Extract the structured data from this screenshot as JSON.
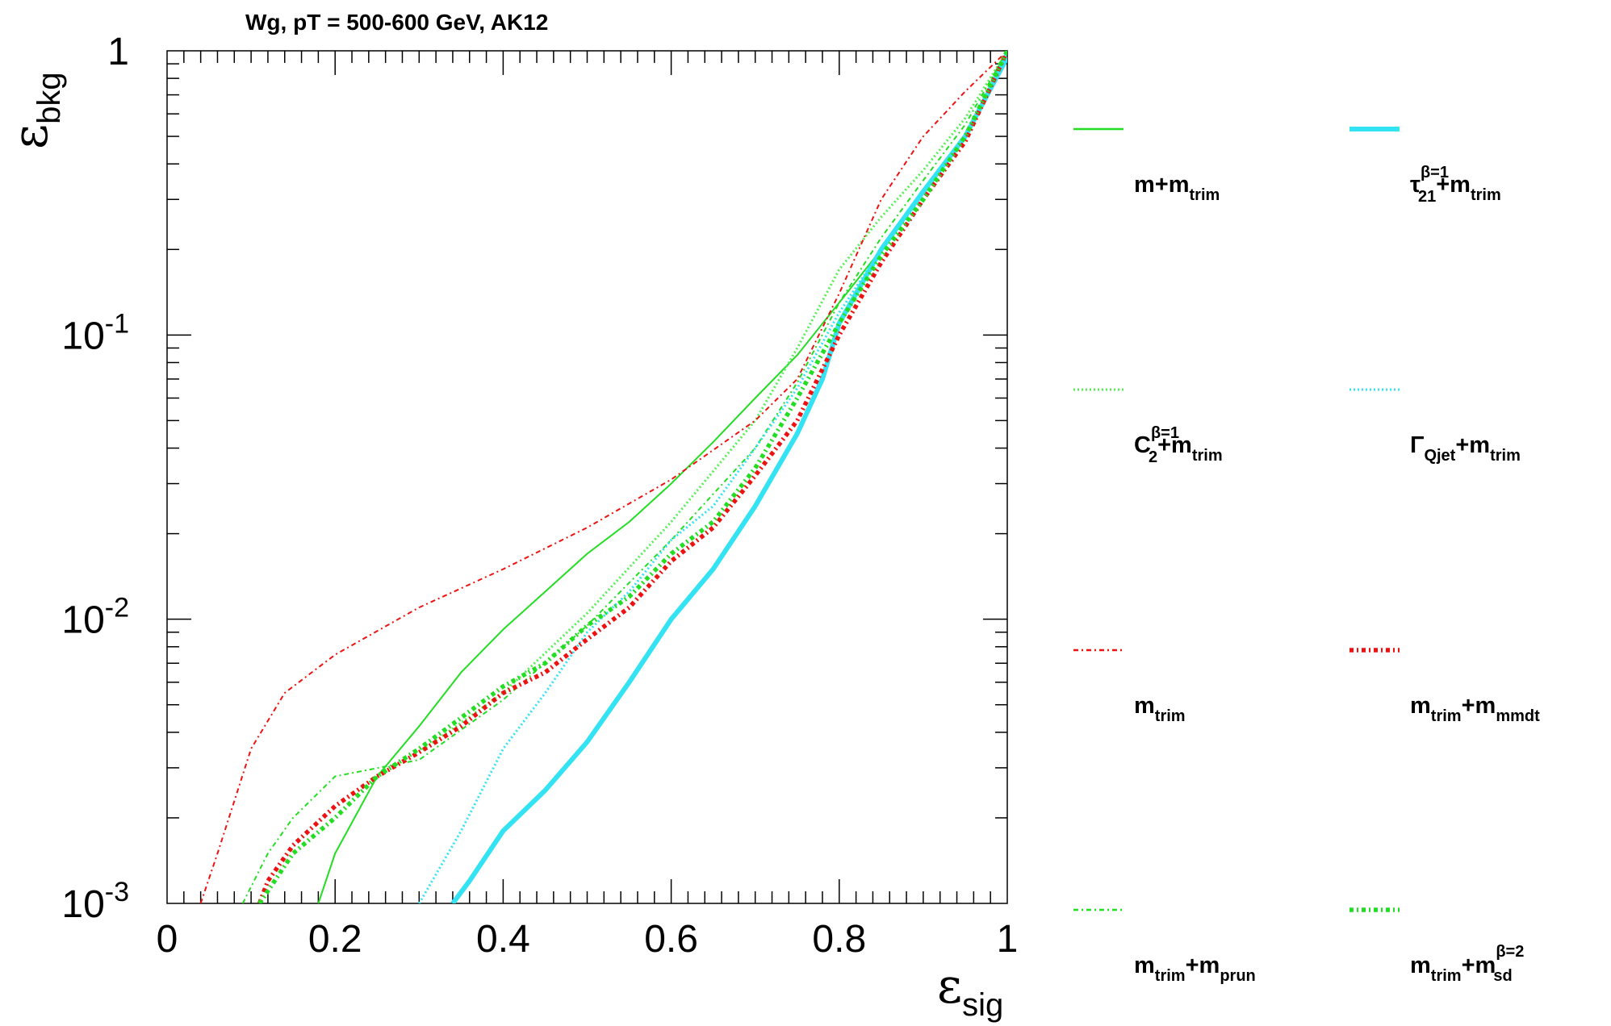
{
  "chart_data": {
    "type": "line",
    "title": "Wg, pT = 500-600 GeV, AK12",
    "xlabel": {
      "main": "ε",
      "sub": "sig"
    },
    "ylabel": {
      "main": "ε",
      "sub": "bkg"
    },
    "xlim": [
      0,
      1
    ],
    "ylim": [
      0.001,
      1
    ],
    "yscale": "log",
    "grid": false,
    "legend_placement": "right",
    "x_ticks": [
      "0",
      "0.2",
      "0.4",
      "0.6",
      "0.8",
      "1"
    ],
    "y_ticks": [
      {
        "base": "10",
        "exp": "-3"
      },
      {
        "base": "10",
        "exp": "-2"
      },
      {
        "base": "10",
        "exp": "-1"
      },
      {
        "base": "1",
        "exp": ""
      }
    ],
    "series": [
      {
        "name": "m+m_trim",
        "label": {
          "main": "m+m",
          "sub": "trim",
          "sup": "",
          "tail": "",
          "tail_sub": ""
        },
        "color": "#22dd22",
        "style": "solid",
        "points": [
          [
            0.18,
            0.001
          ],
          [
            0.2,
            0.0015
          ],
          [
            0.25,
            0.0028
          ],
          [
            0.3,
            0.0042
          ],
          [
            0.35,
            0.0065
          ],
          [
            0.4,
            0.0092
          ],
          [
            0.45,
            0.0125
          ],
          [
            0.5,
            0.017
          ],
          [
            0.55,
            0.022
          ],
          [
            0.6,
            0.03
          ],
          [
            0.65,
            0.042
          ],
          [
            0.7,
            0.06
          ],
          [
            0.75,
            0.085
          ],
          [
            0.8,
            0.13
          ],
          [
            0.85,
            0.2
          ],
          [
            0.9,
            0.32
          ],
          [
            0.95,
            0.5
          ],
          [
            1.0,
            1.0
          ]
        ]
      },
      {
        "name": "C2+m_trim",
        "label": {
          "main": "C",
          "sub": "2",
          "sup": "β=1",
          "tail": "+m",
          "tail_sub": "trim"
        },
        "color": "#55ee55",
        "style": "dotted",
        "points": [
          [
            0.3,
            0.0034
          ],
          [
            0.4,
            0.0055
          ],
          [
            0.5,
            0.0105
          ],
          [
            0.6,
            0.022
          ],
          [
            0.7,
            0.05
          ],
          [
            0.75,
            0.09
          ],
          [
            0.8,
            0.17
          ],
          [
            0.85,
            0.26
          ],
          [
            0.9,
            0.38
          ],
          [
            0.95,
            0.58
          ],
          [
            1.0,
            1.0
          ]
        ]
      },
      {
        "name": "m_trim",
        "label": {
          "main": "m",
          "sub": "trim",
          "sup": "",
          "tail": "",
          "tail_sub": ""
        },
        "color": "#ee1111",
        "style": "dashdot",
        "points": [
          [
            0.04,
            0.001
          ],
          [
            0.06,
            0.0015
          ],
          [
            0.1,
            0.0035
          ],
          [
            0.14,
            0.0055
          ],
          [
            0.2,
            0.0075
          ],
          [
            0.3,
            0.011
          ],
          [
            0.4,
            0.015
          ],
          [
            0.5,
            0.021
          ],
          [
            0.6,
            0.031
          ],
          [
            0.7,
            0.05
          ],
          [
            0.75,
            0.07
          ],
          [
            0.8,
            0.14
          ],
          [
            0.85,
            0.3
          ],
          [
            0.9,
            0.5
          ],
          [
            0.95,
            0.72
          ],
          [
            1.0,
            1.0
          ]
        ]
      },
      {
        "name": "m_trim+m_prun",
        "label": {
          "main": "m",
          "sub": "trim",
          "sup": "",
          "tail": "+m",
          "tail_sub": "prun"
        },
        "color": "#22dd22",
        "style": "dashdot",
        "points": [
          [
            0.09,
            0.001
          ],
          [
            0.12,
            0.0015
          ],
          [
            0.15,
            0.002
          ],
          [
            0.2,
            0.0028
          ],
          [
            0.3,
            0.0032
          ],
          [
            0.4,
            0.0052
          ],
          [
            0.5,
            0.0095
          ],
          [
            0.6,
            0.019
          ],
          [
            0.7,
            0.04
          ],
          [
            0.75,
            0.068
          ],
          [
            0.8,
            0.13
          ],
          [
            0.85,
            0.22
          ],
          [
            0.9,
            0.35
          ],
          [
            0.95,
            0.55
          ],
          [
            1.0,
            1.0
          ]
        ]
      },
      {
        "name": "tau21+m_trim",
        "label": {
          "main": "τ",
          "sub": "21",
          "sup": "β=1",
          "tail": "+m",
          "tail_sub": "trim"
        },
        "color": "#33e3f3",
        "style": "thick",
        "points": [
          [
            0.34,
            0.001
          ],
          [
            0.36,
            0.0012
          ],
          [
            0.4,
            0.0018
          ],
          [
            0.45,
            0.0025
          ],
          [
            0.5,
            0.0037
          ],
          [
            0.55,
            0.006
          ],
          [
            0.6,
            0.01
          ],
          [
            0.65,
            0.015
          ],
          [
            0.7,
            0.025
          ],
          [
            0.75,
            0.045
          ],
          [
            0.78,
            0.07
          ],
          [
            0.8,
            0.11
          ],
          [
            0.85,
            0.2
          ],
          [
            0.9,
            0.32
          ],
          [
            0.95,
            0.5
          ],
          [
            1.0,
            0.95
          ]
        ]
      },
      {
        "name": "Gamma_Qjet+m_trim",
        "label": {
          "main": "Γ",
          "sub": "Qjet",
          "sup": "",
          "tail": "+m",
          "tail_sub": "trim"
        },
        "color": "#33e3f3",
        "style": "dotted",
        "points": [
          [
            0.3,
            0.001
          ],
          [
            0.35,
            0.0018
          ],
          [
            0.4,
            0.0035
          ],
          [
            0.45,
            0.0055
          ],
          [
            0.5,
            0.009
          ],
          [
            0.55,
            0.0125
          ],
          [
            0.6,
            0.019
          ],
          [
            0.65,
            0.025
          ],
          [
            0.7,
            0.04
          ],
          [
            0.75,
            0.065
          ],
          [
            0.8,
            0.12
          ],
          [
            0.85,
            0.2
          ],
          [
            0.9,
            0.32
          ],
          [
            0.95,
            0.5
          ],
          [
            1.0,
            1.0
          ]
        ]
      },
      {
        "name": "m_trim+m_mmdt",
        "label": {
          "main": "m",
          "sub": "trim",
          "sup": "",
          "tail": "+m",
          "tail_sub": "mmdt"
        },
        "color": "#ee1111",
        "style": "dashdot-thick",
        "points": [
          [
            0.11,
            0.001
          ],
          [
            0.12,
            0.0012
          ],
          [
            0.15,
            0.0016
          ],
          [
            0.2,
            0.0022
          ],
          [
            0.25,
            0.0028
          ],
          [
            0.3,
            0.0034
          ],
          [
            0.35,
            0.0042
          ],
          [
            0.4,
            0.0055
          ],
          [
            0.45,
            0.0065
          ],
          [
            0.5,
            0.0085
          ],
          [
            0.55,
            0.011
          ],
          [
            0.6,
            0.016
          ],
          [
            0.65,
            0.021
          ],
          [
            0.7,
            0.032
          ],
          [
            0.75,
            0.05
          ],
          [
            0.8,
            0.1
          ],
          [
            0.85,
            0.18
          ],
          [
            0.9,
            0.3
          ],
          [
            0.95,
            0.48
          ],
          [
            1.0,
            1.0
          ]
        ]
      },
      {
        "name": "m_trim+m_sd",
        "label": {
          "main": "m",
          "sub": "trim",
          "sup": "",
          "tail": "+m",
          "tail_sub": "sd",
          "tail_sup": "β=2"
        },
        "color": "#22dd22",
        "style": "dashdot-thick",
        "points": [
          [
            0.11,
            0.001
          ],
          [
            0.15,
            0.0015
          ],
          [
            0.2,
            0.002
          ],
          [
            0.25,
            0.0028
          ],
          [
            0.3,
            0.0035
          ],
          [
            0.35,
            0.0045
          ],
          [
            0.4,
            0.0058
          ],
          [
            0.45,
            0.007
          ],
          [
            0.5,
            0.0095
          ],
          [
            0.55,
            0.012
          ],
          [
            0.6,
            0.017
          ],
          [
            0.65,
            0.022
          ],
          [
            0.7,
            0.034
          ],
          [
            0.75,
            0.06
          ],
          [
            0.8,
            0.11
          ],
          [
            0.85,
            0.19
          ],
          [
            0.9,
            0.3
          ],
          [
            0.95,
            0.5
          ],
          [
            1.0,
            1.0
          ]
        ]
      }
    ]
  }
}
